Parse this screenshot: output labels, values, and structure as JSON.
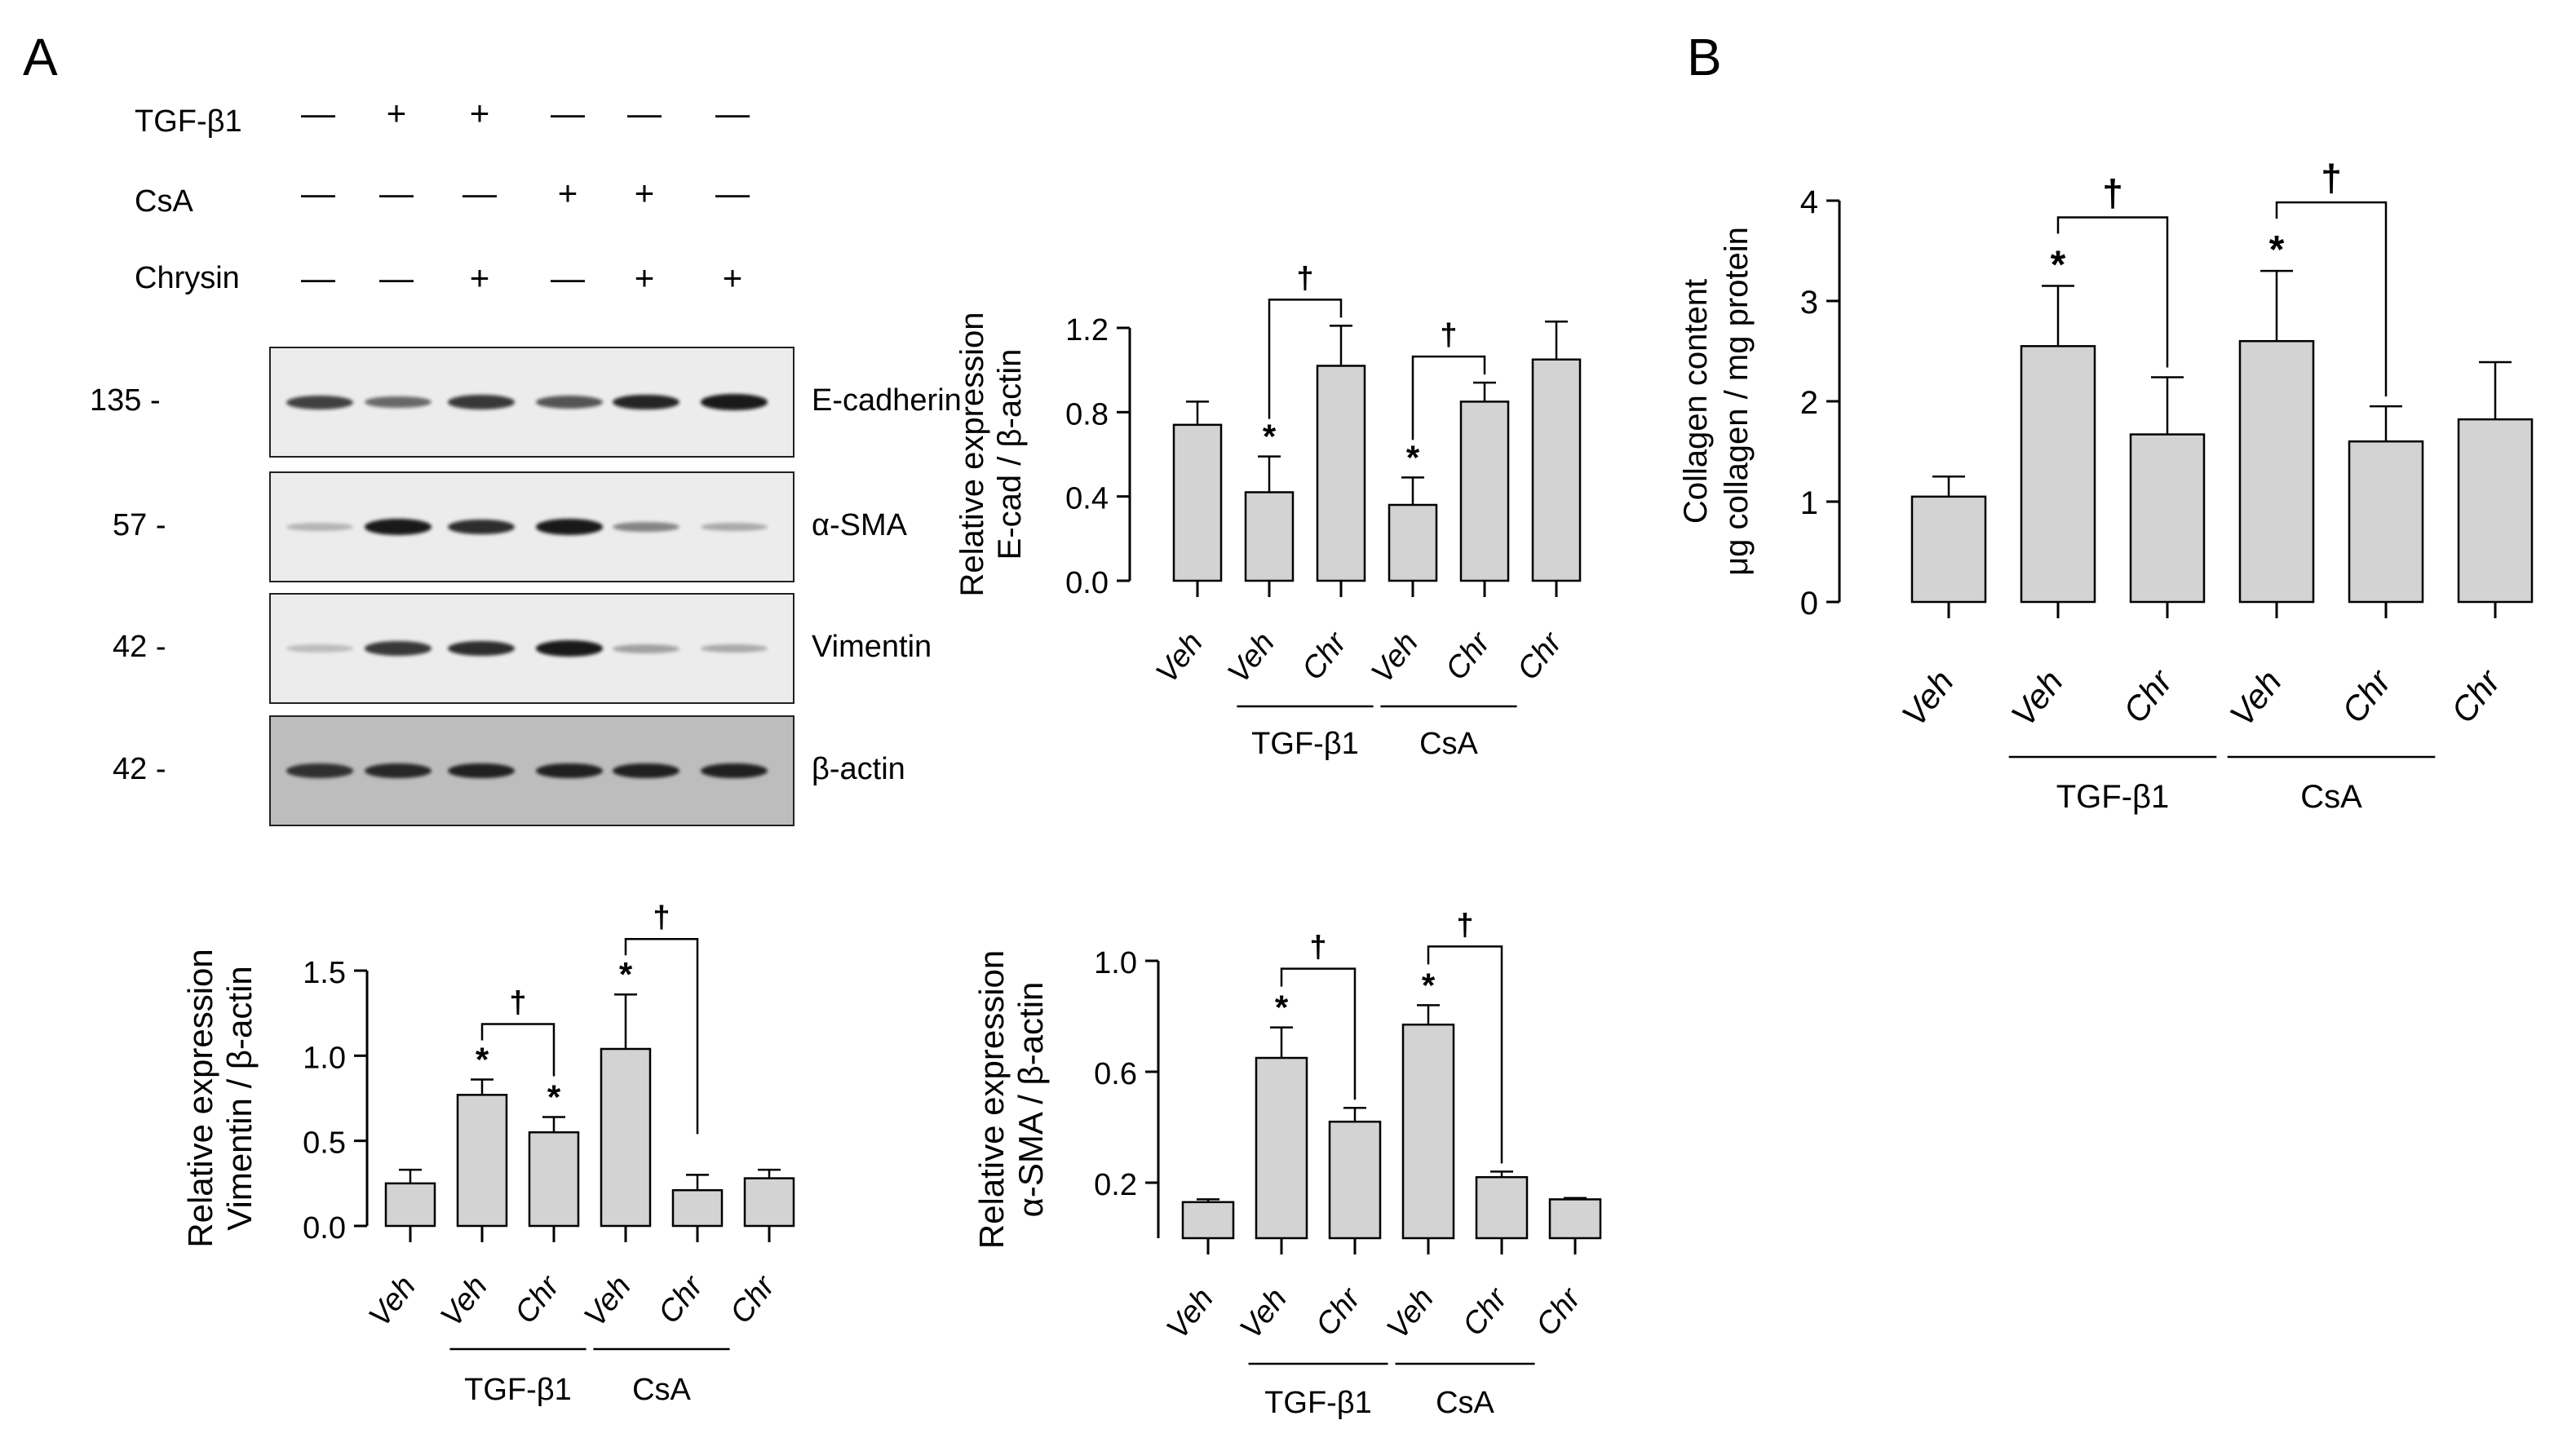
{
  "panels": {
    "a": "A",
    "b": "B"
  },
  "blot": {
    "treatments": [
      {
        "label": "TGF-β1",
        "signs": [
          "—",
          "+",
          "+",
          "—",
          "—",
          "—"
        ]
      },
      {
        "label": "CsA",
        "signs": [
          "—",
          "—",
          "—",
          "+",
          "+",
          "—"
        ]
      },
      {
        "label": "Chrysin",
        "signs": [
          "—",
          "—",
          "+",
          "—",
          "+",
          "+"
        ]
      }
    ],
    "rows": [
      {
        "mw": "135 -",
        "protein": "E-cadherin",
        "intensity": [
          0.75,
          0.55,
          0.8,
          0.65,
          0.9,
          0.95
        ]
      },
      {
        "mw": "57 -",
        "protein": "α-SMA",
        "intensity": [
          0.15,
          0.95,
          0.85,
          0.95,
          0.4,
          0.2
        ]
      },
      {
        "mw": "42 -",
        "protein": "Vimentin",
        "intensity": [
          0.1,
          0.8,
          0.85,
          0.95,
          0.25,
          0.2
        ]
      },
      {
        "mw": "42 -",
        "protein": "β-actin",
        "intensity": [
          0.8,
          0.85,
          0.9,
          0.9,
          0.9,
          0.9
        ]
      }
    ]
  },
  "chart_data": [
    {
      "id": "ecad",
      "type": "bar",
      "ylabel_lines": [
        "Relative expression",
        "E-cad / β-actin"
      ],
      "categories": [
        "Veh",
        "Veh",
        "Chr",
        "Veh",
        "Chr",
        "Chr"
      ],
      "values": [
        0.74,
        0.42,
        1.02,
        0.36,
        0.85,
        1.05
      ],
      "errors": [
        0.11,
        0.17,
        0.19,
        0.13,
        0.09,
        0.18
      ],
      "ylim": [
        0,
        1.2
      ],
      "yticks": [
        "0.0",
        "0.4",
        "0.8",
        "1.2"
      ],
      "marks": [
        "",
        "*",
        "",
        "*",
        "",
        ""
      ],
      "brackets": [
        {
          "from": 1,
          "to": 2,
          "symbol": "†"
        },
        {
          "from": 3,
          "to": 4,
          "symbol": "†"
        }
      ],
      "groups": [
        {
          "label": "TGF-β1",
          "from": 1,
          "to": 2
        },
        {
          "label": "CsA",
          "from": 3,
          "to": 4
        }
      ]
    },
    {
      "id": "vim",
      "type": "bar",
      "ylabel_lines": [
        "Relative expression",
        "Vimentin / β-actin"
      ],
      "categories": [
        "Veh",
        "Veh",
        "Chr",
        "Veh",
        "Chr",
        "Chr"
      ],
      "values": [
        0.25,
        0.77,
        0.55,
        1.04,
        0.21,
        0.28
      ],
      "errors": [
        0.08,
        0.09,
        0.09,
        0.32,
        0.09,
        0.05
      ],
      "ylim": [
        0,
        1.5
      ],
      "yticks": [
        "0.0",
        "0.5",
        "1.0",
        "1.5"
      ],
      "marks": [
        "",
        "*",
        "*",
        "*",
        "",
        ""
      ],
      "brackets": [
        {
          "from": 1,
          "to": 2,
          "symbol": "†"
        },
        {
          "from": 3,
          "to": 4,
          "symbol": "†"
        }
      ],
      "groups": [
        {
          "label": "TGF-β1",
          "from": 1,
          "to": 2
        },
        {
          "label": "CsA",
          "from": 3,
          "to": 4
        }
      ]
    },
    {
      "id": "sma",
      "type": "bar",
      "ylabel_lines": [
        "Relative expression",
        "α-SMA / β-actin"
      ],
      "categories": [
        "Veh",
        "Veh",
        "Chr",
        "Veh",
        "Chr",
        "Chr"
      ],
      "values": [
        0.13,
        0.65,
        0.42,
        0.77,
        0.22,
        0.14
      ],
      "errors": [
        0.01,
        0.11,
        0.05,
        0.07,
        0.02,
        0.005
      ],
      "ylim": [
        0,
        1.0
      ],
      "yticks": [
        "0.2",
        "0.6",
        "1.0"
      ],
      "yticks_at": [
        0.2,
        0.6,
        1.0
      ],
      "marks": [
        "",
        "*",
        "",
        "*",
        "",
        ""
      ],
      "brackets": [
        {
          "from": 1,
          "to": 2,
          "symbol": "†"
        },
        {
          "from": 3,
          "to": 4,
          "symbol": "†"
        }
      ],
      "groups": [
        {
          "label": "TGF-β1",
          "from": 1,
          "to": 2
        },
        {
          "label": "CsA",
          "from": 3,
          "to": 4
        }
      ]
    },
    {
      "id": "collagen",
      "type": "bar",
      "ylabel_lines": [
        "Collagen content",
        "μg collagen / mg protein"
      ],
      "categories": [
        "Veh",
        "Veh",
        "Chr",
        "Veh",
        "Chr",
        "Chr"
      ],
      "values": [
        1.05,
        2.55,
        1.67,
        2.6,
        1.6,
        1.82
      ],
      "errors": [
        0.2,
        0.6,
        0.57,
        0.7,
        0.35,
        0.57
      ],
      "ylim": [
        0,
        4
      ],
      "yticks": [
        "0",
        "1",
        "2",
        "3",
        "4"
      ],
      "marks": [
        "",
        "*",
        "",
        "*",
        "",
        ""
      ],
      "brackets": [
        {
          "from": 1,
          "to": 2,
          "symbol": "†"
        },
        {
          "from": 3,
          "to": 4,
          "symbol": "†"
        }
      ],
      "groups": [
        {
          "label": "TGF-β1",
          "from": 1,
          "to": 2
        },
        {
          "label": "CsA",
          "from": 3,
          "to": 4
        }
      ]
    }
  ]
}
